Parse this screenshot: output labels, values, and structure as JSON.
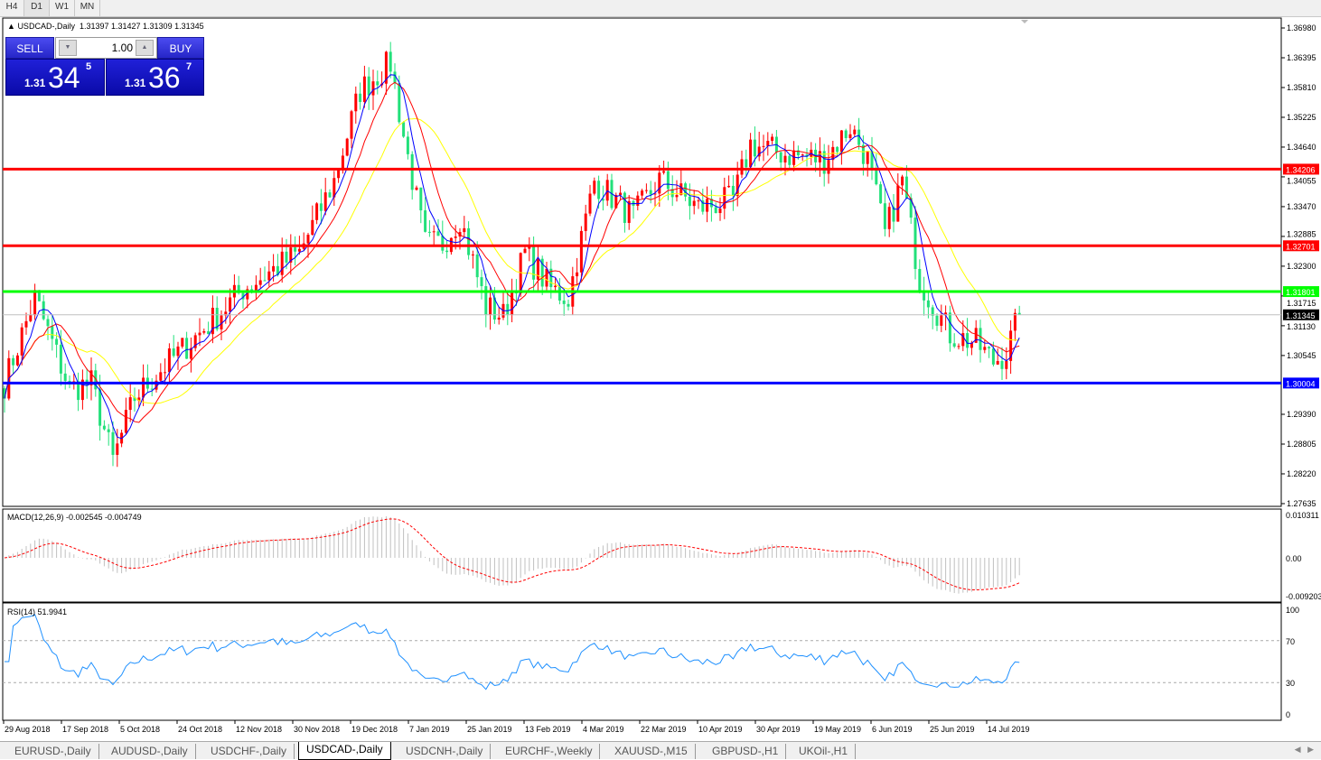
{
  "timeframes": [
    "H4",
    "D1",
    "W1",
    "MN"
  ],
  "active_timeframe": "D1",
  "chart": {
    "title": "USDCAD-,Daily",
    "ohlc": "1.31397 1.31427 1.31309 1.31345"
  },
  "trade_panel": {
    "sell_label": "SELL",
    "buy_label": "BUY",
    "lot": "1.00",
    "sell": {
      "prefix": "1.31",
      "big": "34",
      "sup": "5"
    },
    "buy": {
      "prefix": "1.31",
      "big": "36",
      "sup": "7"
    }
  },
  "price_axis": [
    "1.36980",
    "1.36395",
    "1.35810",
    "1.35225",
    "1.34640",
    "1.34055",
    "1.33470",
    "1.32885",
    "1.32300",
    "1.31715",
    "1.31130",
    "1.30545",
    "1.29390",
    "1.28805",
    "1.28220",
    "1.27635"
  ],
  "levels": [
    {
      "label": "1.34206",
      "price": 1.34206,
      "color": "#ff0000"
    },
    {
      "label": "1.32701",
      "price": 1.32701,
      "color": "#ff0000"
    },
    {
      "label": "1.31801",
      "price": 1.31801,
      "color": "#00ff00"
    },
    {
      "label": "1.30004",
      "price": 1.30004,
      "color": "#0000ff"
    }
  ],
  "current_price": {
    "label": "1.31345",
    "price": 1.31345
  },
  "macd": {
    "title": "MACD(12,26,9) -0.002545 -0.004749",
    "axis": [
      "0.010311",
      "0.00",
      "-0.009203"
    ]
  },
  "rsi": {
    "title": "RSI(14) 51.9941",
    "axis": [
      "100",
      "70",
      "30",
      "0"
    ]
  },
  "dates": [
    "29 Aug 2018",
    "17 Sep 2018",
    "5 Oct 2018",
    "24 Oct 2018",
    "12 Nov 2018",
    "30 Nov 2018",
    "19 Dec 2018",
    "7 Jan 2019",
    "25 Jan 2019",
    "13 Feb 2019",
    "4 Mar 2019",
    "22 Mar 2019",
    "10 Apr 2019",
    "30 Apr 2019",
    "19 May 2019",
    "6 Jun 2019",
    "25 Jun 2019",
    "14 Jul 2019"
  ],
  "colors": {
    "bull": "#ff0000",
    "bear": "#22e07a",
    "ma_fast": "#0000ff",
    "ma_mid": "#ff0000",
    "ma_slow": "#ffff00",
    "rsi": "#1e90ff",
    "macd_signal": "#ff0000",
    "macd_hist": "#c0c0c0"
  },
  "tabs": [
    "EURUSD-,Daily",
    "AUDUSD-,Daily",
    "USDCHF-,Daily",
    "USDCAD-,Daily",
    "USDCNH-,Daily",
    "EURCHF-,Weekly",
    "XAUUSD-,M15",
    "GBPUSD-,H1",
    "UKOil-,H1"
  ],
  "active_tab": "USDCAD-,Daily",
  "chart_data": {
    "type": "candlestick",
    "approx_close_path": [
      [
        0,
        1.3
      ],
      [
        7,
        1.3168
      ],
      [
        15,
        1.299
      ],
      [
        20,
        1.3
      ],
      [
        25,
        1.2848
      ],
      [
        30,
        1.2973
      ],
      [
        36,
        1.3026
      ],
      [
        47,
        1.3115
      ],
      [
        55,
        1.3185
      ],
      [
        68,
        1.3256
      ],
      [
        76,
        1.3398
      ],
      [
        82,
        1.3576
      ],
      [
        89,
        1.3629
      ],
      [
        92,
        1.3487
      ],
      [
        97,
        1.3274
      ],
      [
        101,
        1.3274
      ],
      [
        105,
        1.3327
      ],
      [
        111,
        1.315
      ],
      [
        115,
        1.3132
      ],
      [
        120,
        1.3256
      ],
      [
        126,
        1.3185
      ],
      [
        130,
        1.3168
      ],
      [
        136,
        1.3398
      ],
      [
        145,
        1.3327
      ],
      [
        151,
        1.34
      ],
      [
        160,
        1.3345
      ],
      [
        168,
        1.336
      ],
      [
        172,
        1.347
      ],
      [
        180,
        1.345
      ],
      [
        189,
        1.344
      ],
      [
        195,
        1.3505
      ],
      [
        199,
        1.344
      ],
      [
        203,
        1.3292
      ],
      [
        207,
        1.34
      ],
      [
        211,
        1.3203
      ],
      [
        218,
        1.3097
      ],
      [
        224,
        1.3079
      ],
      [
        228,
        1.3043
      ],
      [
        231,
        1.306
      ],
      [
        234,
        1.31345
      ]
    ]
  }
}
